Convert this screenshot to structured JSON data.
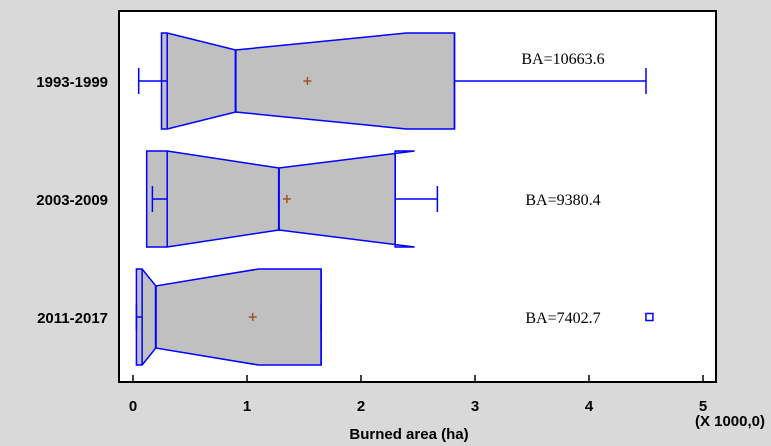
{
  "chart_data": {
    "type": "box",
    "orientation": "horizontal",
    "notched": true,
    "xlabel": "Burned area (ha)",
    "x_scale_note": "(X 1000,0)",
    "xlim": [
      0,
      5
    ],
    "xticks": [
      "0",
      "1",
      "2",
      "3",
      "4",
      "5"
    ],
    "grid": false,
    "colors": {
      "box_fill": "#c0c0c0",
      "stroke": "#0000ff",
      "mean_marker": "#a0522d",
      "background": "#d9d9d9",
      "plot_area": "#ffffff"
    },
    "boxes": [
      {
        "category": "1993-1999",
        "whisker_low": 0.05,
        "q1": 0.3,
        "notch_low": 0.25,
        "median": 0.9,
        "notch_high": 2.4,
        "q3": 2.82,
        "whisker_high": 4.5,
        "mean": 1.53,
        "annotation": "BA=10663.6",
        "outliers": []
      },
      {
        "category": "2003-2009",
        "whisker_low": 0.17,
        "q1": 0.3,
        "notch_low": 0.12,
        "median": 1.28,
        "notch_high": 2.47,
        "q3": 2.3,
        "whisker_high": 2.67,
        "mean": 1.35,
        "annotation": "BA=9380.4",
        "outliers": []
      },
      {
        "category": "2011-2017",
        "whisker_low": 0.03,
        "q1": 0.08,
        "notch_low": 0.03,
        "median": 0.2,
        "notch_high": 1.1,
        "q3": 1.65,
        "whisker_high": 1.65,
        "mean": 1.05,
        "annotation": "BA=7402.7",
        "outliers": [
          4.53
        ]
      }
    ]
  }
}
